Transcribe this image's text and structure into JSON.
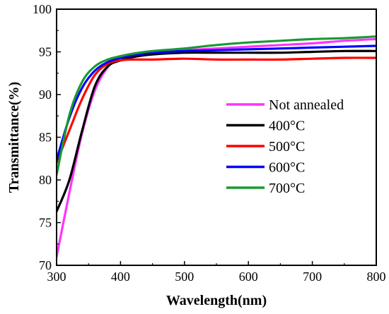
{
  "chart_data": {
    "type": "line",
    "title": "",
    "xlabel": "Wavelength(nm)",
    "ylabel": "Transmittance(%)",
    "xlim": [
      300,
      800
    ],
    "ylim": [
      70,
      100
    ],
    "xticks": [
      300,
      400,
      500,
      600,
      700,
      800
    ],
    "yticks": [
      70,
      75,
      80,
      85,
      90,
      95,
      100
    ],
    "grid": false,
    "legend_position": "center-right",
    "x": [
      300,
      320,
      340,
      360,
      380,
      400,
      420,
      450,
      500,
      550,
      600,
      650,
      700,
      750,
      800
    ],
    "series": [
      {
        "name": "Not annealed",
        "color": "#ff33ff",
        "values": [
          71.0,
          78.5,
          85.5,
          90.5,
          93.2,
          94.3,
          94.6,
          94.9,
          95.2,
          95.4,
          95.6,
          95.8,
          96.0,
          96.3,
          96.5
        ]
      },
      {
        "name": "400°C",
        "color": "#000000",
        "values": [
          76.3,
          80.0,
          85.8,
          91.0,
          93.3,
          94.0,
          94.4,
          94.7,
          94.9,
          94.9,
          94.9,
          94.9,
          95.0,
          95.1,
          95.1
        ]
      },
      {
        "name": "500°C",
        "color": "#ff0000",
        "values": [
          82.0,
          85.8,
          89.5,
          92.3,
          93.6,
          94.0,
          94.1,
          94.1,
          94.2,
          94.1,
          94.1,
          94.1,
          94.2,
          94.3,
          94.3
        ]
      },
      {
        "name": "600°C",
        "color": "#0000ff",
        "values": [
          82.3,
          87.3,
          90.8,
          92.8,
          93.8,
          94.3,
          94.6,
          94.9,
          95.1,
          95.2,
          95.3,
          95.4,
          95.5,
          95.6,
          95.7
        ]
      },
      {
        "name": "700°C",
        "color": "#1a9933",
        "values": [
          80.6,
          87.6,
          91.5,
          93.3,
          94.1,
          94.5,
          94.8,
          95.1,
          95.4,
          95.8,
          96.1,
          96.3,
          96.5,
          96.6,
          96.8
        ]
      }
    ]
  }
}
